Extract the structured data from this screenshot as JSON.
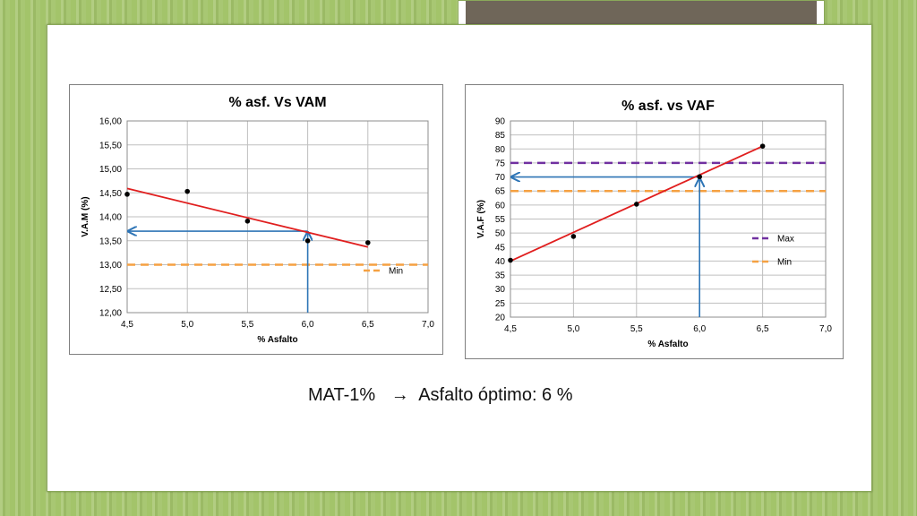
{
  "conclusion": {
    "material": "MAT-1%",
    "arrow_glyph": "→",
    "text": "Asfalto óptimo: 6 %"
  },
  "colors": {
    "trend": "#e01e1e",
    "arrows": "#2e75b6",
    "min_line": "#f5a142",
    "max_line": "#7030a0",
    "grid": "#bfbfbf"
  },
  "chart_data": [
    {
      "type": "scatter",
      "title": "% asf. Vs VAM",
      "xlabel": "% Asfalto",
      "ylabel": "V.A.M (%)",
      "xlim": [
        4.5,
        7.0
      ],
      "ylim": [
        12.0,
        16.0
      ],
      "x_ticks": [
        4.5,
        5.0,
        5.5,
        6.0,
        6.5,
        7.0
      ],
      "x_tick_labels": [
        "4,5",
        "5,0",
        "5,5",
        "6,0",
        "6,5",
        "7,0"
      ],
      "y_ticks": [
        12.0,
        12.5,
        13.0,
        13.5,
        14.0,
        14.5,
        15.0,
        15.5,
        16.0
      ],
      "y_tick_labels": [
        "12,00",
        "12,50",
        "13,00",
        "13,50",
        "14,00",
        "14,50",
        "15,00",
        "15,50",
        "16,00"
      ],
      "grid": true,
      "points": [
        {
          "x": 4.5,
          "y": 14.47
        },
        {
          "x": 5.0,
          "y": 14.53
        },
        {
          "x": 5.5,
          "y": 13.91
        },
        {
          "x": 6.0,
          "y": 13.5
        },
        {
          "x": 6.5,
          "y": 13.46
        }
      ],
      "trendline": {
        "x": [
          4.5,
          6.5
        ],
        "y": [
          14.59,
          13.37
        ]
      },
      "reference_lines": [
        {
          "name": "Min",
          "y": 13.0,
          "color": "#f5a142",
          "style": "dashed"
        }
      ],
      "legend": {
        "placement": "right",
        "entries": [
          "Min"
        ]
      },
      "annotation_arrows": [
        {
          "kind": "up",
          "x": 6.0,
          "y_from": 12.0,
          "y_to": 13.68
        },
        {
          "kind": "left",
          "y": 13.7,
          "x_from": 6.0,
          "x_to": 4.5
        }
      ]
    },
    {
      "type": "scatter",
      "title": "% asf. vs VAF",
      "xlabel": "% Asfalto",
      "ylabel": "V.A.F (%)",
      "xlim": [
        4.5,
        7.0
      ],
      "ylim": [
        20,
        90
      ],
      "x_ticks": [
        4.5,
        5.0,
        5.5,
        6.0,
        6.5,
        7.0
      ],
      "x_tick_labels": [
        "4,5",
        "5,0",
        "5,5",
        "6,0",
        "6,5",
        "7,0"
      ],
      "y_ticks": [
        20,
        25,
        30,
        35,
        40,
        45,
        50,
        55,
        60,
        65,
        70,
        75,
        80,
        85,
        90
      ],
      "y_tick_labels": [
        "20",
        "25",
        "30",
        "35",
        "40",
        "45",
        "50",
        "55",
        "60",
        "65",
        "70",
        "75",
        "80",
        "85",
        "90"
      ],
      "grid": true,
      "points": [
        {
          "x": 4.5,
          "y": 40.3
        },
        {
          "x": 5.0,
          "y": 48.8
        },
        {
          "x": 5.5,
          "y": 60.3
        },
        {
          "x": 6.0,
          "y": 70.1
        },
        {
          "x": 6.5,
          "y": 81.0
        }
      ],
      "trendline": {
        "x": [
          4.5,
          6.5
        ],
        "y": [
          40.0,
          81.0
        ]
      },
      "reference_lines": [
        {
          "name": "Max",
          "y": 75,
          "color": "#7030a0",
          "style": "dashed"
        },
        {
          "name": "Min",
          "y": 65,
          "color": "#f5a142",
          "style": "dashed"
        }
      ],
      "legend": {
        "placement": "right",
        "entries": [
          "Max",
          "Min"
        ]
      },
      "annotation_arrows": [
        {
          "kind": "up",
          "x": 6.0,
          "y_from": 20,
          "y_to": 69.5
        },
        {
          "kind": "left",
          "y": 70,
          "x_from": 6.0,
          "x_to": 4.5
        }
      ]
    }
  ]
}
